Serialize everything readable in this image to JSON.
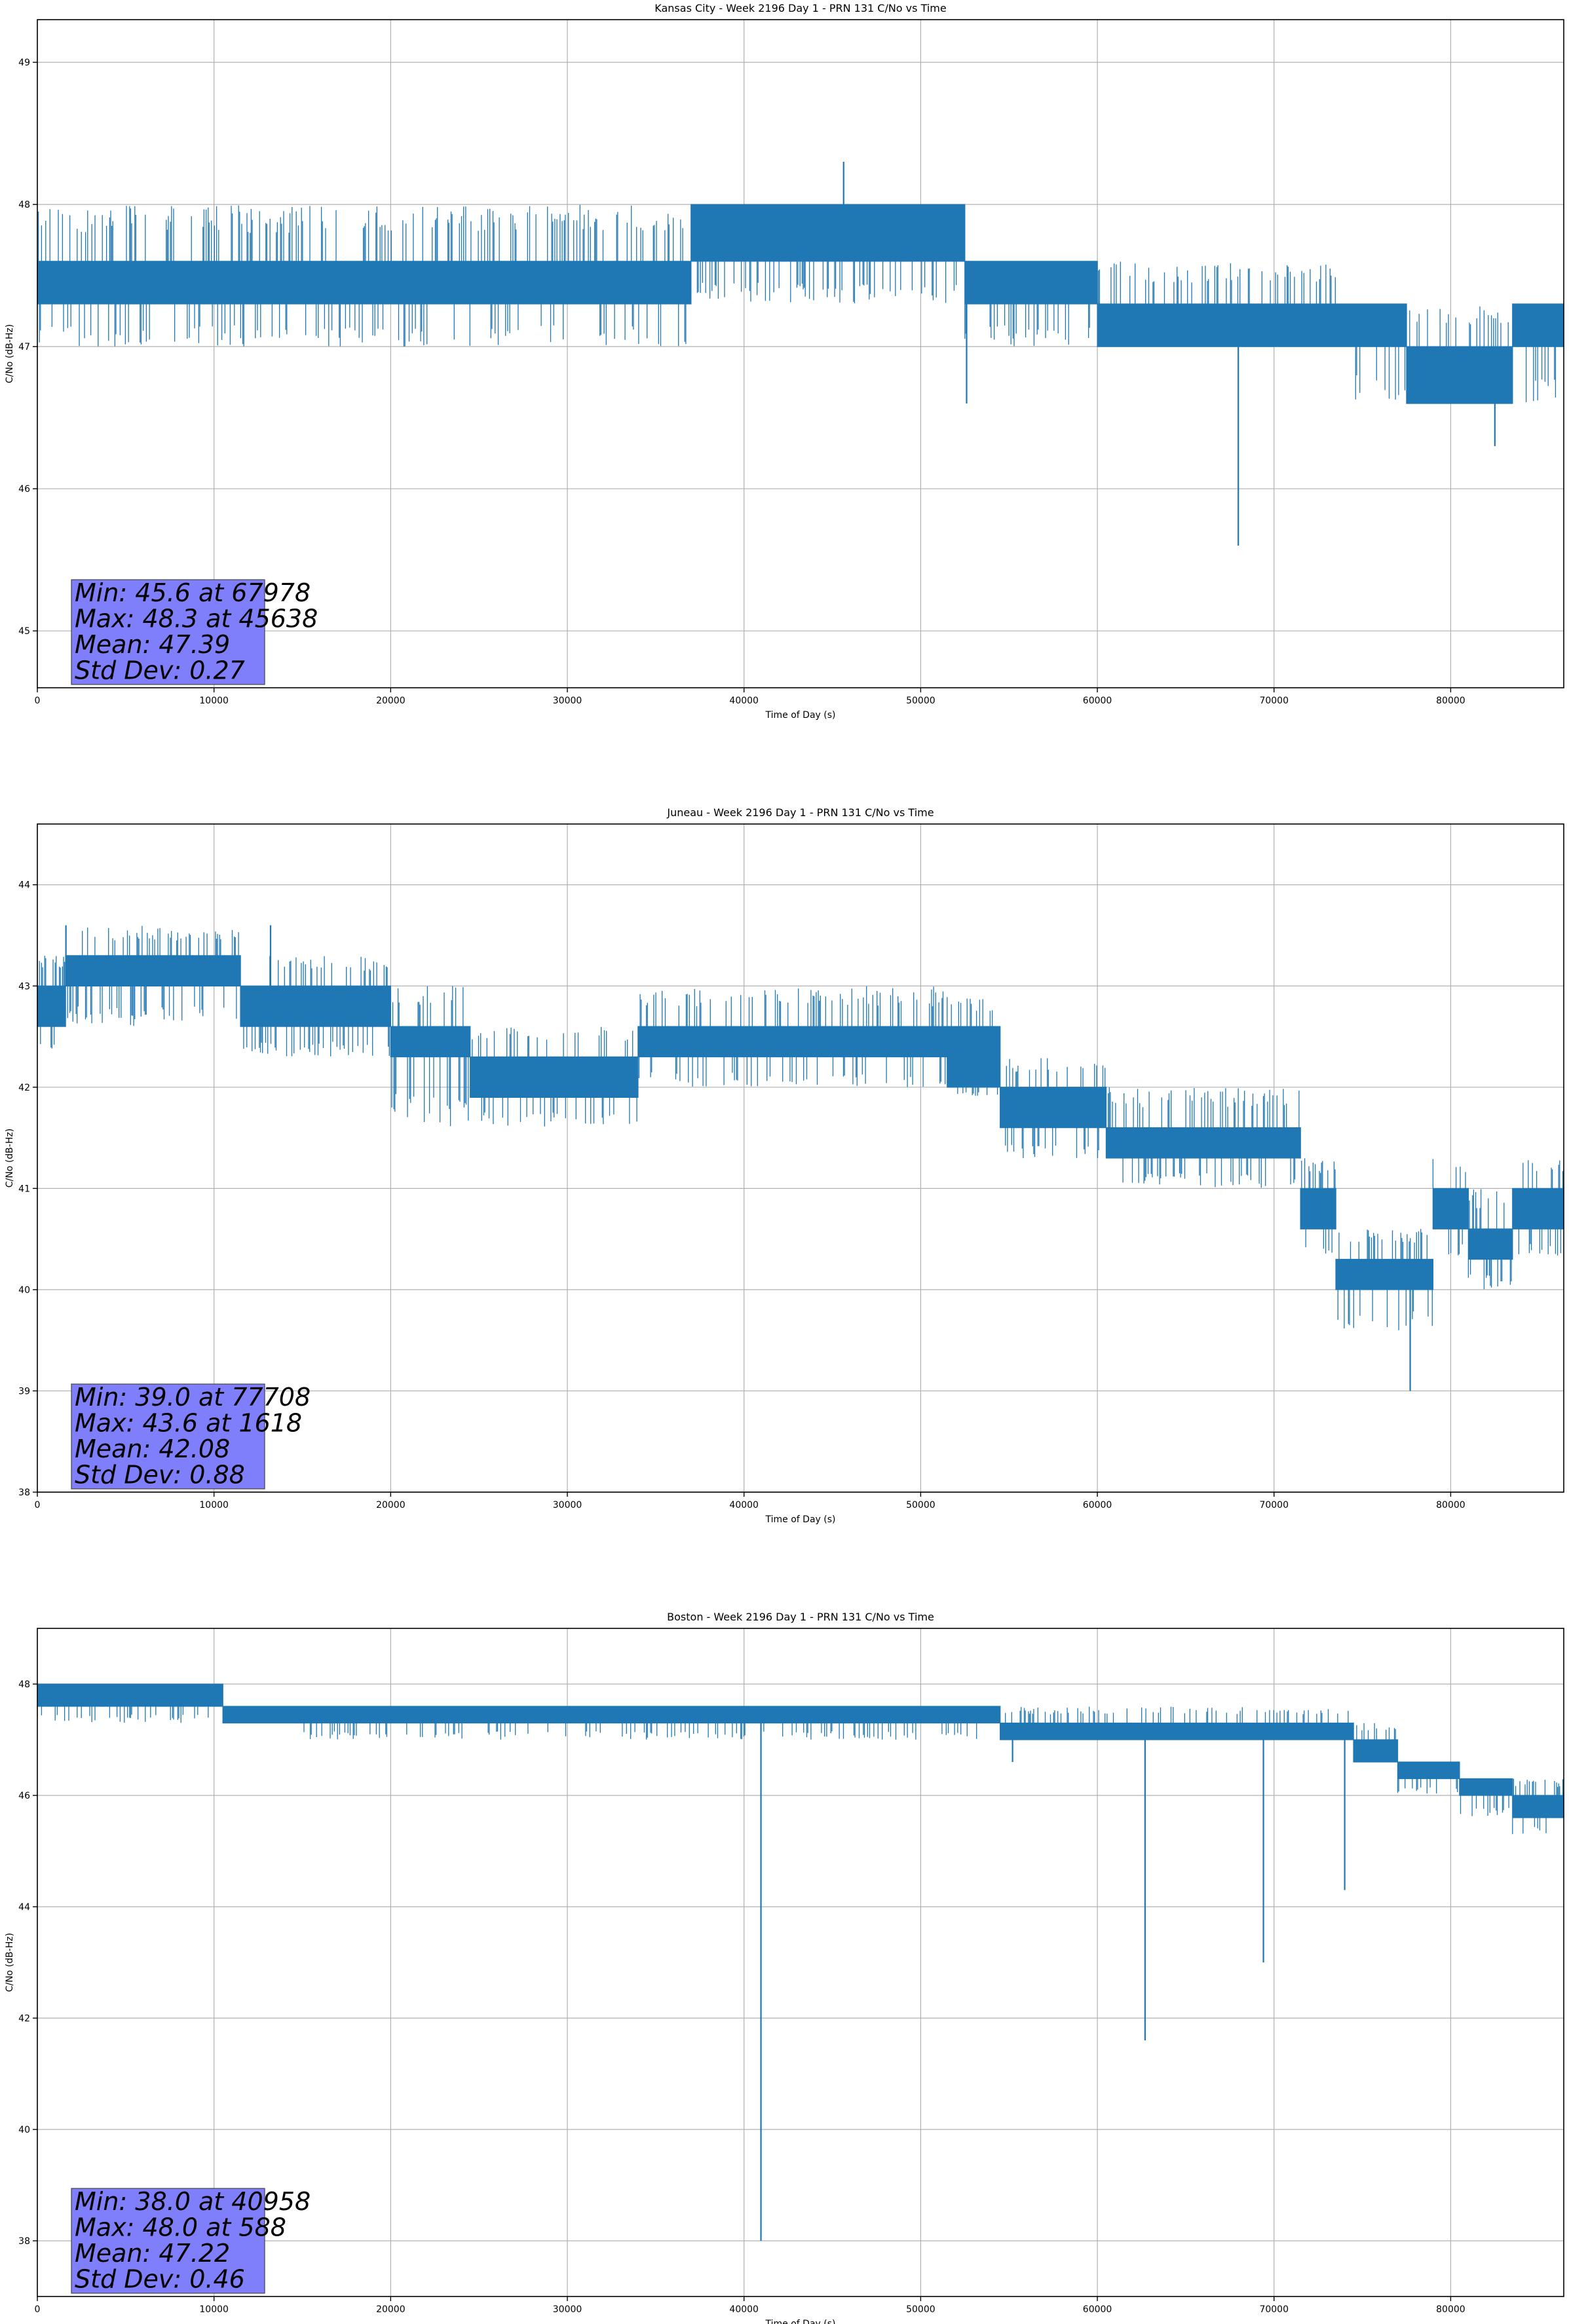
{
  "chart_data": [
    {
      "type": "line",
      "title": "Kansas City - Week 2196 Day 1 - PRN 131 C/No vs Time",
      "xlabel": "Time of Day (s)",
      "ylabel": "C/No (dB-Hz)",
      "xlim": [
        0,
        86400
      ],
      "ylim": [
        44.6,
        49.3
      ],
      "xticks": [
        0,
        10000,
        20000,
        30000,
        40000,
        50000,
        60000,
        70000,
        80000
      ],
      "yticks": [
        45,
        46,
        47,
        48,
        49
      ],
      "grid": true,
      "stats": [
        "Min: 45.6 at 67978",
        "Max: 48.3 at 45638",
        "Mean: 47.39",
        "Std Dev: 0.27"
      ],
      "segments": [
        {
          "x0": 0,
          "x1": 19500,
          "lo": 47.3,
          "hi": 47.6,
          "dlo": 47.0,
          "dhi": 48.0
        },
        {
          "x0": 19500,
          "x1": 37000,
          "lo": 47.3,
          "hi": 47.6,
          "dlo": 47.0,
          "dhi": 48.0
        },
        {
          "x0": 37000,
          "x1": 52500,
          "lo": 47.6,
          "hi": 48.0,
          "dlo": 47.3,
          "dhi": 48.0
        },
        {
          "x0": 52500,
          "x1": 60000,
          "lo": 47.3,
          "hi": 47.6,
          "dlo": 47.0,
          "dhi": 47.6
        },
        {
          "x0": 60000,
          "x1": 74500,
          "lo": 47.0,
          "hi": 47.3,
          "dlo": 47.0,
          "dhi": 47.6
        },
        {
          "x0": 74500,
          "x1": 77500,
          "lo": 47.0,
          "hi": 47.3,
          "dlo": 46.6,
          "dhi": 47.3
        },
        {
          "x0": 77500,
          "x1": 83500,
          "lo": 46.6,
          "hi": 47.0,
          "dlo": 46.6,
          "dhi": 47.3
        },
        {
          "x0": 83500,
          "x1": 86400,
          "lo": 47.0,
          "hi": 47.3,
          "dlo": 46.6,
          "dhi": 47.3
        }
      ],
      "spikes": [
        [
          45638,
          48.3
        ],
        [
          52600,
          46.6
        ],
        [
          67978,
          45.6
        ],
        [
          82500,
          46.3
        ]
      ],
      "color": "#1f77b4"
    },
    {
      "type": "line",
      "title": "Juneau - Week 2196 Day 1 - PRN 131 C/No vs Time",
      "xlabel": "Time of Day (s)",
      "ylabel": "C/No (dB-Hz)",
      "xlim": [
        0,
        86400
      ],
      "ylim": [
        38.0,
        44.6
      ],
      "xticks": [
        0,
        10000,
        20000,
        30000,
        40000,
        50000,
        60000,
        70000,
        80000
      ],
      "yticks": [
        38,
        39,
        40,
        41,
        42,
        43,
        44
      ],
      "grid": true,
      "stats": [
        "Min: 39.0 at 77708",
        "Max: 43.6 at 1618",
        "Mean: 42.08",
        "Std Dev: 0.88"
      ],
      "segments": [
        {
          "x0": 0,
          "x1": 1600,
          "lo": 42.6,
          "hi": 43.0,
          "dlo": 42.3,
          "dhi": 43.3
        },
        {
          "x0": 1600,
          "x1": 11500,
          "lo": 43.0,
          "hi": 43.3,
          "dlo": 42.6,
          "dhi": 43.6
        },
        {
          "x0": 11500,
          "x1": 20000,
          "lo": 42.6,
          "hi": 43.0,
          "dlo": 42.3,
          "dhi": 43.3
        },
        {
          "x0": 20000,
          "x1": 24500,
          "lo": 42.3,
          "hi": 42.6,
          "dlo": 41.6,
          "dhi": 43.0
        },
        {
          "x0": 24500,
          "x1": 34000,
          "lo": 41.9,
          "hi": 42.3,
          "dlo": 41.6,
          "dhi": 42.6
        },
        {
          "x0": 34000,
          "x1": 51500,
          "lo": 42.3,
          "hi": 42.6,
          "dlo": 42.0,
          "dhi": 43.0
        },
        {
          "x0": 51500,
          "x1": 54500,
          "lo": 42.0,
          "hi": 42.6,
          "dlo": 41.9,
          "dhi": 42.9
        },
        {
          "x0": 54500,
          "x1": 60500,
          "lo": 41.6,
          "hi": 42.0,
          "dlo": 41.3,
          "dhi": 42.3
        },
        {
          "x0": 60500,
          "x1": 71500,
          "lo": 41.3,
          "hi": 41.6,
          "dlo": 41.0,
          "dhi": 42.0
        },
        {
          "x0": 71500,
          "x1": 73500,
          "lo": 40.6,
          "hi": 41.0,
          "dlo": 40.3,
          "dhi": 41.3
        },
        {
          "x0": 73500,
          "x1": 79000,
          "lo": 40.0,
          "hi": 40.3,
          "dlo": 39.6,
          "dhi": 40.6
        },
        {
          "x0": 79000,
          "x1": 81000,
          "lo": 40.6,
          "hi": 41.0,
          "dlo": 40.3,
          "dhi": 41.3
        },
        {
          "x0": 81000,
          "x1": 83500,
          "lo": 40.3,
          "hi": 40.6,
          "dlo": 40.0,
          "dhi": 41.0
        },
        {
          "x0": 83500,
          "x1": 86400,
          "lo": 40.6,
          "hi": 41.0,
          "dlo": 40.3,
          "dhi": 41.3
        }
      ],
      "spikes": [
        [
          1618,
          43.6
        ],
        [
          13200,
          43.6
        ],
        [
          77708,
          39.0
        ]
      ],
      "color": "#1f77b4"
    },
    {
      "type": "line",
      "title": "Boston - Week 2196 Day 1 - PRN 131 C/No vs Time",
      "xlabel": "Time of Day (s)",
      "ylabel": "C/No (dB-Hz)",
      "xlim": [
        0,
        86400
      ],
      "ylim": [
        37.0,
        49.0
      ],
      "xticks": [
        0,
        10000,
        20000,
        30000,
        40000,
        50000,
        60000,
        70000,
        80000
      ],
      "yticks": [
        38,
        40,
        42,
        44,
        46,
        48
      ],
      "grid": true,
      "stats": [
        "Min: 38.0 at 40958",
        "Max: 48.0 at 588",
        "Mean: 47.22",
        "Std Dev: 0.46"
      ],
      "segments": [
        {
          "x0": 0,
          "x1": 10500,
          "lo": 47.6,
          "hi": 48.0,
          "dlo": 47.3,
          "dhi": 48.0
        },
        {
          "x0": 10500,
          "x1": 14500,
          "lo": 47.3,
          "hi": 47.6,
          "dlo": 47.3,
          "dhi": 47.6
        },
        {
          "x0": 14500,
          "x1": 23500,
          "lo": 47.3,
          "hi": 47.6,
          "dlo": 47.0,
          "dhi": 47.6
        },
        {
          "x0": 23500,
          "x1": 54500,
          "lo": 47.3,
          "hi": 47.6,
          "dlo": 47.0,
          "dhi": 47.6
        },
        {
          "x0": 54500,
          "x1": 74500,
          "lo": 47.0,
          "hi": 47.3,
          "dlo": 47.0,
          "dhi": 47.6
        },
        {
          "x0": 74500,
          "x1": 77000,
          "lo": 46.6,
          "hi": 47.0,
          "dlo": 46.6,
          "dhi": 47.3
        },
        {
          "x0": 77000,
          "x1": 80500,
          "lo": 46.3,
          "hi": 46.6,
          "dlo": 46.0,
          "dhi": 46.6
        },
        {
          "x0": 80500,
          "x1": 83500,
          "lo": 46.0,
          "hi": 46.3,
          "dlo": 45.6,
          "dhi": 46.3
        },
        {
          "x0": 83500,
          "x1": 86400,
          "lo": 45.6,
          "hi": 46.0,
          "dlo": 45.3,
          "dhi": 46.3
        }
      ],
      "spikes": [
        [
          40958,
          38.0
        ],
        [
          62700,
          41.6
        ],
        [
          69400,
          43.0
        ],
        [
          74000,
          44.3
        ],
        [
          55200,
          46.6
        ]
      ],
      "color": "#1f77b4"
    }
  ]
}
